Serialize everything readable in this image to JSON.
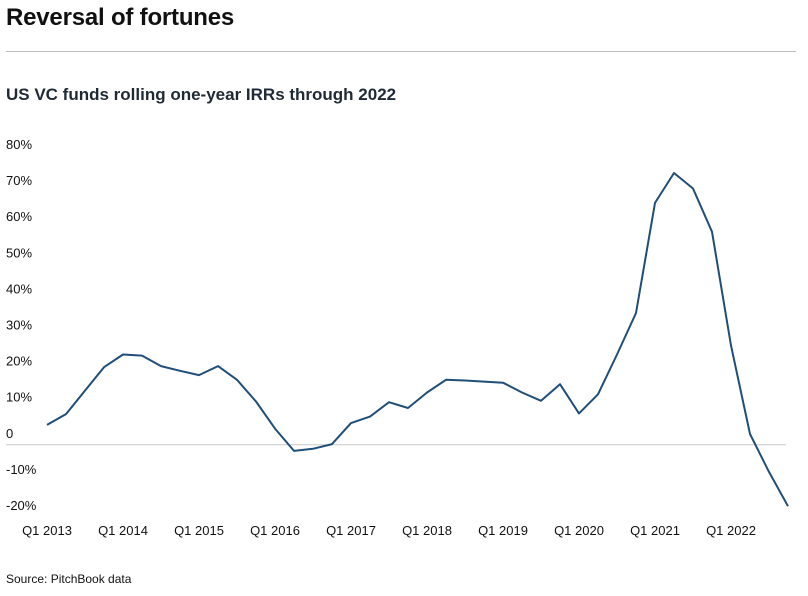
{
  "header": {
    "title": "Reversal of fortunes",
    "subtitle": "US VC funds rolling one-year IRRs through 2022"
  },
  "footer": {
    "source": "Source: PitchBook data"
  },
  "colors": {
    "line": "#1f4e79",
    "axis": "#c8c8c8",
    "rule": "#bdbdbd"
  },
  "chart_data": {
    "type": "line",
    "title": "",
    "xlabel": "",
    "ylabel": "",
    "ylim": [
      -20,
      80
    ],
    "yticks": [
      -20,
      -10,
      0,
      10,
      20,
      30,
      40,
      50,
      60,
      70,
      80
    ],
    "ytick_labels": [
      "-20%",
      "-10%",
      "0",
      "10%",
      "20%",
      "30%",
      "40%",
      "50%",
      "60%",
      "70%",
      "80%"
    ],
    "xtick_labels": [
      "Q1 2013",
      "Q1 2014",
      "Q1 2015",
      "Q1 2016",
      "Q1 2017",
      "Q1 2018",
      "Q1 2019",
      "Q1 2020",
      "Q1 2021",
      "Q1 2022"
    ],
    "grid": false,
    "legend": "none",
    "series": [
      {
        "x": [
          "Q1 2013",
          "Q2 2013",
          "Q3 2013",
          "Q4 2013",
          "Q1 2014",
          "Q2 2014",
          "Q3 2014",
          "Q4 2014",
          "Q1 2015",
          "Q2 2015",
          "Q3 2015",
          "Q4 2015",
          "Q1 2016",
          "Q2 2016",
          "Q3 2016",
          "Q4 2016",
          "Q1 2017",
          "Q2 2017",
          "Q3 2017",
          "Q4 2017",
          "Q1 2018",
          "Q2 2018",
          "Q3 2018",
          "Q4 2018",
          "Q1 2019",
          "Q2 2019",
          "Q3 2019",
          "Q4 2019",
          "Q1 2020",
          "Q2 2020",
          "Q3 2020",
          "Q4 2020",
          "Q1 2021",
          "Q2 2021",
          "Q3 2021",
          "Q4 2021",
          "Q1 2022",
          "Q2 2022",
          "Q3 2022",
          "Q4 2022"
        ],
        "values": [
          5.5,
          8.5,
          15,
          21.5,
          25,
          24.7,
          21.8,
          20.5,
          19.3,
          21.8,
          18,
          12,
          4.5,
          -1.7,
          -1.1,
          0.2,
          6,
          7.8,
          11.8,
          10.2,
          14.5,
          18,
          17.8,
          17.5,
          17.2,
          14.5,
          12.2,
          16.8,
          8.7,
          14,
          25,
          36.5,
          67,
          75.3,
          71,
          59,
          27.5,
          3,
          -7.5,
          -17
        ]
      }
    ]
  }
}
